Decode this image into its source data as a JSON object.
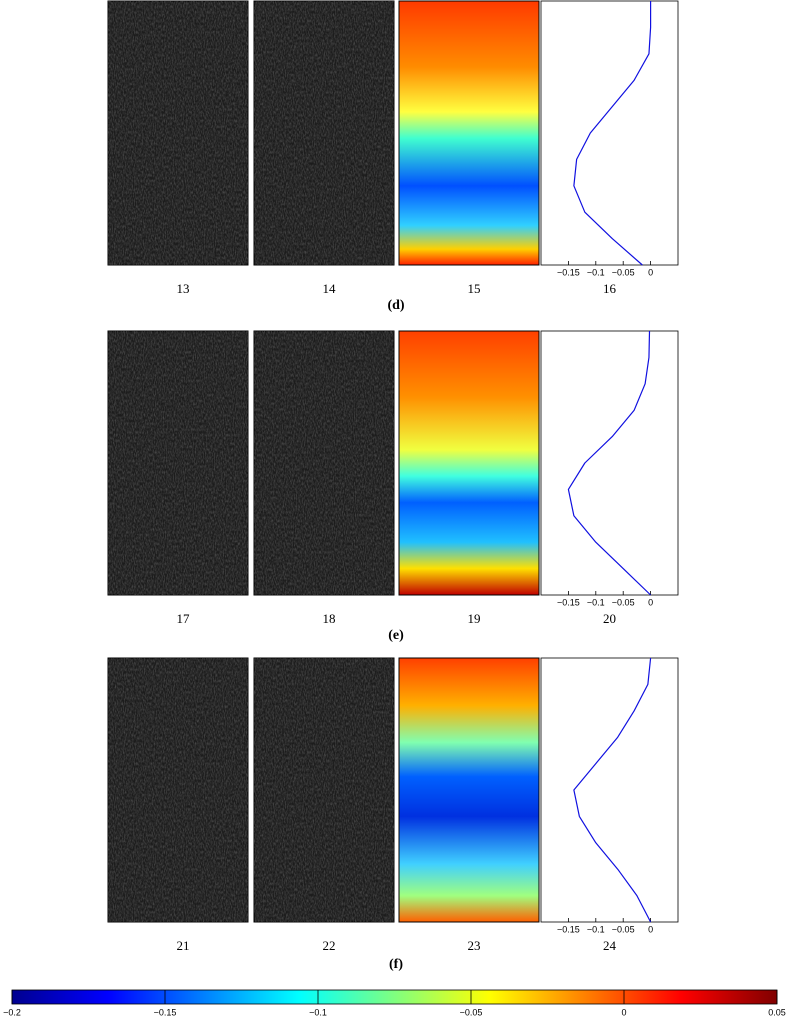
{
  "rows": [
    {
      "label": "(d)",
      "panels": [
        "13",
        "14",
        "15",
        "16"
      ],
      "profile": {
        "depth": [
          0,
          0.1,
          0.2,
          0.3,
          0.4,
          0.5,
          0.6,
          0.7,
          0.8,
          0.9,
          1
        ],
        "values": [
          0,
          0,
          -0.003,
          -0.03,
          -0.07,
          -0.11,
          -0.135,
          -0.14,
          -0.12,
          -0.07,
          -0.015
        ]
      }
    },
    {
      "label": "(e)",
      "panels": [
        "17",
        "18",
        "19",
        "20"
      ],
      "profile": {
        "depth": [
          0,
          0.1,
          0.2,
          0.3,
          0.4,
          0.5,
          0.6,
          0.7,
          0.8,
          0.9,
          1
        ],
        "values": [
          -0.002,
          -0.003,
          -0.01,
          -0.03,
          -0.07,
          -0.12,
          -0.15,
          -0.14,
          -0.1,
          -0.05,
          0
        ]
      }
    },
    {
      "label": "(f)",
      "panels": [
        "21",
        "22",
        "23",
        "24"
      ],
      "profile": {
        "depth": [
          0,
          0.1,
          0.2,
          0.3,
          0.4,
          0.5,
          0.6,
          0.7,
          0.8,
          0.9,
          1
        ],
        "values": [
          0,
          -0.005,
          -0.03,
          -0.06,
          -0.1,
          -0.14,
          -0.13,
          -0.1,
          -0.06,
          -0.025,
          0
        ]
      }
    }
  ],
  "profile_axis": {
    "xlim": [
      -0.2,
      0.05
    ],
    "ylim": [
      0,
      1
    ],
    "xticks": [
      {
        "value": -0.15,
        "label": "−0.15"
      },
      {
        "value": -0.1,
        "label": "−0.1"
      },
      {
        "value": -0.05,
        "label": "−0.05"
      },
      0
    ],
    "color": "#1010e0"
  },
  "colorbar": {
    "lim": [
      -0.2,
      0.05
    ],
    "ticks": [
      {
        "value": -0.2,
        "label": "−0.2"
      },
      {
        "value": -0.15,
        "label": "−0.15"
      },
      {
        "value": -0.1,
        "label": "−0.1"
      },
      {
        "value": -0.05,
        "label": "−0.05"
      },
      0,
      0.05
    ]
  }
}
